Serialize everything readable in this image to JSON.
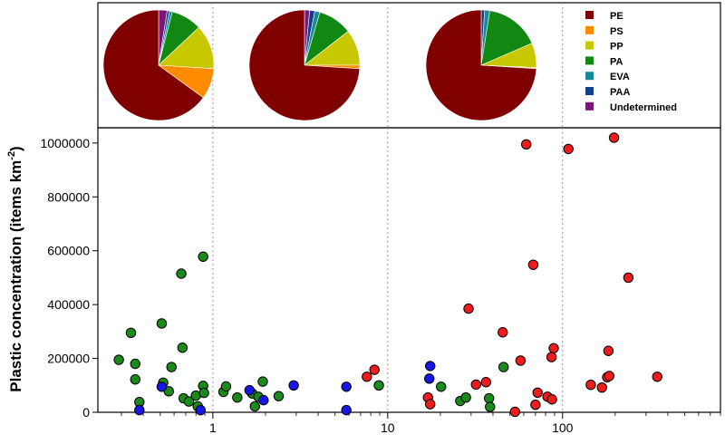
{
  "chart_data": [
    {
      "type": "pie",
      "legend": [
        "PE",
        "PS",
        "PP",
        "PA",
        "EVA",
        "PAA",
        "Undetermined"
      ],
      "colors": {
        "PE": "#800000",
        "PS": "#ff8c00",
        "PP": "#c8c800",
        "PA": "#118811",
        "EVA": "#178a9a",
        "PAA": "#123e8a",
        "Undetermined": "#7a157a"
      },
      "pies": [
        {
          "slices": [
            {
              "name": "PE",
              "value": 65
            },
            {
              "name": "PS",
              "value": 9
            },
            {
              "name": "PP",
              "value": 13
            },
            {
              "name": "PA",
              "value": 9
            },
            {
              "name": "EVA",
              "value": 0.8
            },
            {
              "name": "PAA",
              "value": 0.7
            },
            {
              "name": "Undetermined",
              "value": 2.5
            }
          ]
        },
        {
          "slices": [
            {
              "name": "PE",
              "value": 74
            },
            {
              "name": "PS",
              "value": 1
            },
            {
              "name": "PP",
              "value": 10.5
            },
            {
              "name": "PA",
              "value": 10
            },
            {
              "name": "EVA",
              "value": 1.5
            },
            {
              "name": "PAA",
              "value": 1.5
            },
            {
              "name": "Undetermined",
              "value": 1.5
            }
          ]
        },
        {
          "slices": [
            {
              "name": "PE",
              "value": 74
            },
            {
              "name": "PS",
              "value": 0.3
            },
            {
              "name": "PP",
              "value": 7.2
            },
            {
              "name": "PA",
              "value": 16
            },
            {
              "name": "EVA",
              "value": 1.5
            },
            {
              "name": "PAA",
              "value": 1
            },
            {
              "name": "Undetermined",
              "value": 0
            }
          ]
        }
      ]
    },
    {
      "type": "scatter",
      "xscale": "log",
      "xlim": [
        0.22,
        800
      ],
      "ylim": [
        0,
        1050000
      ],
      "xticks": [
        1,
        10,
        100
      ],
      "xtick_labels": [
        "1",
        "10",
        "100"
      ],
      "yticks": [
        0,
        200000,
        400000,
        600000,
        800000,
        1000000
      ],
      "ytick_labels": [
        "0",
        "200000",
        "400000",
        "600000",
        "800000",
        "1000000"
      ],
      "ylabel": "Plastic concentration (items km",
      "ylabel_sup": "-2",
      "ylabel_close": ")",
      "xlabel": "",
      "vertical_gridlines_at": [
        1,
        10,
        100
      ],
      "series": [
        {
          "color": "#1a8a1a",
          "points": [
            [
              0.29,
              195000
            ],
            [
              0.34,
              295000
            ],
            [
              0.36,
              180000
            ],
            [
              0.36,
              122000
            ],
            [
              0.38,
              38000
            ],
            [
              0.51,
              330000
            ],
            [
              0.52,
              110000
            ],
            [
              0.56,
              78000
            ],
            [
              0.58,
              168000
            ],
            [
              0.66,
              515000
            ],
            [
              0.67,
              240000
            ],
            [
              0.68,
              52000
            ],
            [
              0.73,
              40000
            ],
            [
              0.8,
              62000
            ],
            [
              0.82,
              22000
            ],
            [
              0.88,
              578000
            ],
            [
              0.88,
              98000
            ],
            [
              0.89,
              72000
            ],
            [
              1.15,
              76000
            ],
            [
              1.19,
              96000
            ],
            [
              1.38,
              55000
            ],
            [
              1.68,
              70000
            ],
            [
              1.74,
              22000
            ],
            [
              1.82,
              58000
            ],
            [
              1.93,
              114000
            ],
            [
              2.38,
              60000
            ],
            [
              8.9,
              100000
            ],
            [
              20.2,
              95000
            ],
            [
              26,
              42000
            ],
            [
              28,
              55000
            ],
            [
              38,
              52000
            ],
            [
              38.5,
              20000
            ],
            [
              46,
              168000
            ]
          ]
        },
        {
          "color": "#1616e6",
          "points": [
            [
              0.38,
              8000
            ],
            [
              0.51,
              95000
            ],
            [
              0.85,
              8000
            ],
            [
              1.62,
              82000
            ],
            [
              1.95,
              45000
            ],
            [
              2.9,
              100000
            ],
            [
              5.8,
              95000
            ],
            [
              5.8,
              8000
            ],
            [
              17.5,
              172000
            ],
            [
              17.3,
              125000
            ]
          ]
        },
        {
          "color": "#ee1c1c",
          "points": [
            [
              7.6,
              132000
            ],
            [
              8.4,
              158000
            ],
            [
              17,
              55000
            ],
            [
              17.5,
              30000
            ],
            [
              29,
              385000
            ],
            [
              32,
              103000
            ],
            [
              36.5,
              112000
            ],
            [
              45.5,
              297000
            ],
            [
              53.5,
              2000
            ],
            [
              57.5,
              192000
            ],
            [
              62,
              995000
            ],
            [
              68,
              548000
            ],
            [
              70,
              28000
            ],
            [
              72,
              73000
            ],
            [
              82,
              58000
            ],
            [
              86.5,
              205000
            ],
            [
              87,
              48000
            ],
            [
              89,
              238000
            ],
            [
              108,
              978000
            ],
            [
              145,
              102000
            ],
            [
              168,
              92000
            ],
            [
              180,
              130000
            ],
            [
              183,
              228000
            ],
            [
              185,
              135000
            ],
            [
              197,
              1020000
            ],
            [
              238,
              500000
            ],
            [
              348,
              132000
            ]
          ]
        }
      ]
    }
  ]
}
